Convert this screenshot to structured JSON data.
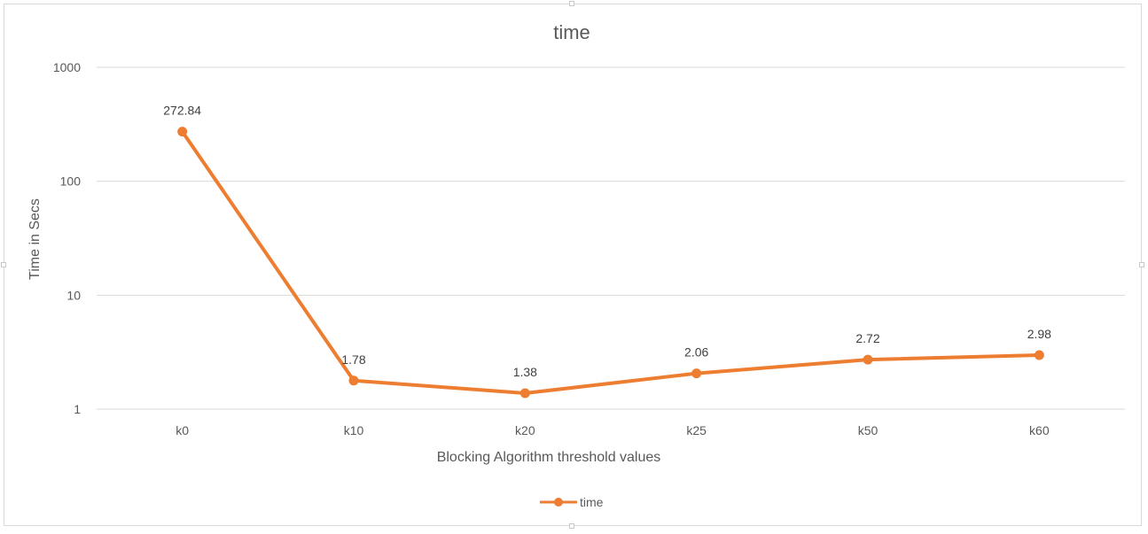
{
  "chart_data": {
    "type": "line",
    "title": "time",
    "xlabel": "Blocking Algorithm threshold values",
    "ylabel": "Time in Secs",
    "categories": [
      "k0",
      "k10",
      "k20",
      "k25",
      "k50",
      "k60"
    ],
    "series": [
      {
        "name": "time",
        "values": [
          272.84,
          1.78,
          1.38,
          2.06,
          2.72,
          2.98
        ],
        "data_labels": [
          "272.84",
          "1.78",
          "1.38",
          "2.06",
          "2.72",
          "2.98"
        ]
      }
    ],
    "y_scale": "log",
    "ylim": [
      1,
      1000
    ],
    "y_ticks": [
      1,
      10,
      100,
      1000
    ],
    "y_tick_labels": [
      "1",
      "10",
      "100",
      "1000"
    ],
    "grid": true,
    "legend": "bottom-center",
    "colors": {
      "series": "#ed7d31",
      "grid": "#d9d9d9",
      "text": "#595959"
    }
  }
}
